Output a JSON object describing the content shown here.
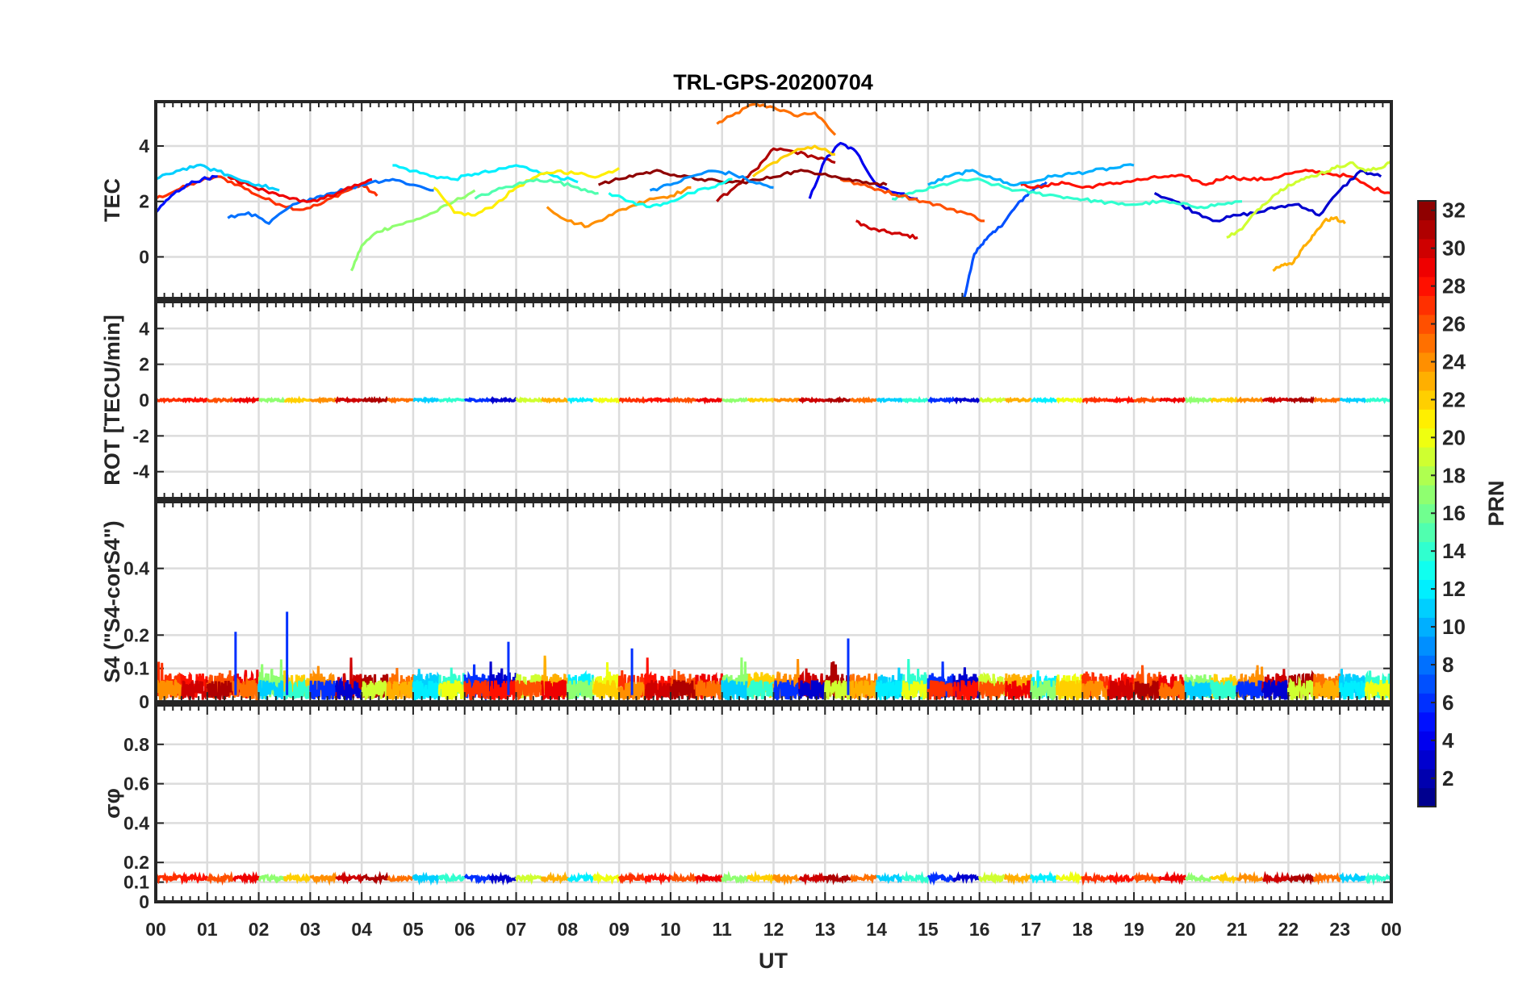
{
  "chart_data": {
    "type": "line",
    "title": "TRL-GPS-20200704",
    "xlabel": "UT",
    "x_tick_labels": [
      "00",
      "01",
      "02",
      "03",
      "04",
      "05",
      "06",
      "07",
      "08",
      "09",
      "10",
      "11",
      "12",
      "13",
      "14",
      "15",
      "16",
      "17",
      "18",
      "19",
      "20",
      "21",
      "22",
      "23",
      "00"
    ],
    "xlim": [
      0,
      24
    ],
    "grid": true,
    "colorbar": {
      "label": "PRN",
      "range": [
        1,
        32
      ],
      "ticks": [
        2,
        4,
        6,
        8,
        10,
        12,
        14,
        16,
        18,
        20,
        22,
        24,
        26,
        28,
        30,
        32
      ],
      "colormap": "jet",
      "placement": "right"
    },
    "panels": [
      {
        "id": "tec",
        "ylabel": "TEC",
        "ylim": [
          -1.5,
          5.6
        ],
        "yticks": [
          0,
          2,
          4
        ],
        "series": [
          {
            "prn": 25,
            "x": [
              10.9,
              11.2,
              11.6,
              12.0,
              12.4,
              12.8,
              13.2
            ],
            "y": [
              4.8,
              5.1,
              5.5,
              5.4,
              5.1,
              5.2,
              4.4
            ]
          },
          {
            "prn": 27,
            "x": [
              0.0,
              0.4,
              0.8,
              1.2,
              1.6,
              2.0,
              2.4,
              2.8,
              3.2,
              3.6,
              4.0,
              4.3
            ],
            "y": [
              2.1,
              2.4,
              2.7,
              2.9,
              2.6,
              2.2,
              1.9,
              1.7,
              1.9,
              2.3,
              2.6,
              2.2
            ]
          },
          {
            "prn": 30,
            "x": [
              13.6,
              13.9,
              14.2,
              14.5,
              14.8
            ],
            "y": [
              1.3,
              1.0,
              0.9,
              0.8,
              0.7
            ]
          },
          {
            "prn": 7,
            "x": [
              15.7,
              15.9,
              16.1,
              16.3,
              16.5,
              16.7,
              16.9,
              17.1,
              17.3
            ],
            "y": [
              -1.5,
              0.1,
              0.6,
              0.9,
              1.3,
              1.8,
              2.2,
              2.5,
              2.7
            ]
          },
          {
            "prn": 23,
            "x": [
              21.7,
              21.9,
              22.1,
              22.3,
              22.5,
              22.7,
              22.9,
              23.1
            ],
            "y": [
              -0.5,
              -0.3,
              -0.2,
              0.4,
              0.8,
              1.3,
              1.4,
              1.2
            ]
          },
          {
            "prn": 17,
            "x": [
              3.8,
              4.0,
              4.3,
              4.6,
              5.0,
              5.4,
              5.8,
              6.2
            ],
            "y": [
              -0.5,
              0.4,
              0.9,
              1.1,
              1.3,
              1.6,
              2.0,
              2.4
            ]
          },
          {
            "prn": 31,
            "x": [
              10.9,
              11.3,
              11.7,
              12.0,
              12.4,
              12.8,
              13.2
            ],
            "y": [
              2.0,
              2.6,
              3.2,
              3.9,
              3.8,
              3.6,
              3.4
            ]
          },
          {
            "prn": 4,
            "x": [
              12.7,
              13.0,
              13.3,
              13.6,
              14.0,
              14.4,
              14.8
            ],
            "y": [
              2.1,
              3.5,
              4.1,
              3.8,
              2.6,
              2.3,
              2.1
            ]
          },
          {
            "prn": 12,
            "x": [
              4.6,
              5.0,
              5.4,
              5.8,
              6.2,
              6.6,
              7.0,
              7.4,
              7.8,
              8.2
            ],
            "y": [
              3.3,
              3.1,
              2.9,
              2.8,
              3.0,
              3.1,
              3.3,
              3.1,
              2.9,
              2.7
            ]
          },
          {
            "prn": 21,
            "x": [
              5.4,
              5.8,
              6.2,
              6.6,
              7.0,
              7.4,
              7.8,
              8.2,
              8.6,
              9.0
            ],
            "y": [
              2.5,
              1.6,
              1.5,
              1.9,
              2.5,
              2.9,
              3.1,
              3.0,
              2.9,
              3.2
            ]
          },
          {
            "prn": 24,
            "x": [
              7.6,
              8.0,
              8.4,
              8.8,
              9.2,
              9.6,
              10.0,
              10.4
            ],
            "y": [
              1.8,
              1.3,
              1.1,
              1.5,
              1.8,
              2.1,
              2.2,
              2.5
            ]
          },
          {
            "prn": 28,
            "x": [
              16.8,
              17.2,
              17.6,
              18.0,
              18.4,
              18.8,
              19.2,
              19.6,
              20.0,
              20.4,
              20.8,
              21.2,
              21.6,
              22.0,
              22.4,
              22.8,
              23.2,
              23.6,
              24.0
            ],
            "y": [
              2.6,
              2.5,
              2.7,
              2.5,
              2.6,
              2.7,
              2.8,
              2.9,
              2.9,
              2.6,
              2.9,
              2.8,
              2.8,
              3.0,
              3.1,
              3.0,
              2.9,
              2.5,
              2.3
            ]
          },
          {
            "prn": 3,
            "x": [
              19.4,
              19.8,
              20.2,
              20.6,
              21.0,
              21.4,
              21.8,
              22.2,
              22.6,
              23.0,
              23.4,
              23.8
            ],
            "y": [
              2.3,
              2.0,
              1.6,
              1.3,
              1.5,
              1.6,
              1.8,
              1.9,
              1.5,
              2.4,
              3.1,
              2.9
            ]
          },
          {
            "prn": 10,
            "x": [
              15.0,
              15.4,
              15.8,
              16.2,
              16.6,
              17.0,
              17.4,
              17.8,
              18.2,
              18.6,
              19.0
            ],
            "y": [
              2.6,
              2.9,
              3.1,
              2.9,
              2.6,
              2.7,
              2.9,
              3.0,
              3.1,
              3.2,
              3.3
            ]
          },
          {
            "prn": 14,
            "x": [
              14.3,
              14.7,
              15.1,
              15.5,
              15.9,
              16.3,
              16.7,
              17.1,
              17.5,
              17.9,
              18.3,
              18.7,
              19.1,
              19.5,
              19.9,
              20.3,
              20.7,
              21.1
            ],
            "y": [
              2.1,
              2.3,
              2.5,
              2.7,
              2.8,
              2.6,
              2.4,
              2.3,
              2.2,
              2.1,
              2.0,
              1.9,
              1.9,
              2.0,
              1.9,
              1.8,
              1.9,
              2.0
            ]
          },
          {
            "prn": 8,
            "x": [
              1.4,
              1.8,
              2.2,
              2.6,
              3.0,
              3.4,
              3.8,
              4.2,
              4.6,
              5.0,
              5.4
            ],
            "y": [
              1.4,
              1.6,
              1.2,
              1.8,
              2.1,
              2.3,
              2.5,
              2.7,
              2.8,
              2.6,
              2.4
            ]
          },
          {
            "prn": 26,
            "x": [
              13.3,
              13.7,
              14.1,
              14.5,
              14.9,
              15.3,
              15.7,
              16.1
            ],
            "y": [
              2.8,
              2.6,
              2.4,
              2.2,
              2.0,
              1.8,
              1.6,
              1.3
            ]
          },
          {
            "prn": 19,
            "x": [
              20.8,
              21.1,
              21.4,
              21.7,
              22.0,
              22.3,
              22.6,
              22.9,
              23.2,
              23.5,
              23.8,
              24.0
            ],
            "y": [
              0.7,
              1.0,
              1.7,
              2.2,
              2.6,
              2.8,
              3.0,
              3.2,
              3.4,
              3.1,
              3.2,
              3.5
            ]
          },
          {
            "prn": 32,
            "x": [
              8.6,
              9.0,
              9.4,
              9.8,
              10.2,
              10.6,
              11.0,
              11.4,
              11.8,
              12.2,
              12.6,
              13.0,
              13.4,
              13.8,
              14.2
            ],
            "y": [
              2.6,
              2.8,
              3.0,
              3.1,
              2.9,
              2.8,
              2.7,
              2.7,
              2.8,
              3.0,
              3.1,
              3.0,
              2.8,
              2.7,
              2.6
            ]
          },
          {
            "prn": 29,
            "x": [
              1.4,
              1.8,
              2.2,
              2.6,
              3.0,
              3.4,
              3.8,
              4.2
            ],
            "y": [
              2.9,
              2.6,
              2.3,
              2.1,
              2.0,
              2.2,
              2.5,
              2.8
            ]
          },
          {
            "prn": 11,
            "x": [
              0.0,
              0.4,
              0.8,
              1.2,
              1.6,
              2.0,
              2.4
            ],
            "y": [
              2.8,
              3.1,
              3.3,
              3.1,
              2.8,
              2.6,
              2.4
            ]
          },
          {
            "prn": 22,
            "x": [
              11.6,
              12.0,
              12.4,
              12.8,
              13.2
            ],
            "y": [
              2.9,
              3.4,
              3.8,
              4.0,
              3.7
            ]
          },
          {
            "prn": 9,
            "x": [
              9.6,
              10.0,
              10.4,
              10.8,
              11.2,
              11.6,
              12.0
            ],
            "y": [
              2.4,
              2.6,
              2.9,
              3.1,
              3.0,
              2.7,
              2.5
            ]
          },
          {
            "prn": 5,
            "x": [
              0.0,
              0.3,
              0.6,
              0.9,
              1.2
            ],
            "y": [
              1.6,
              2.2,
              2.6,
              2.8,
              2.9
            ]
          },
          {
            "prn": 15,
            "x": [
              6.2,
              6.6,
              7.0,
              7.4,
              7.8,
              8.2,
              8.6
            ],
            "y": [
              2.1,
              2.4,
              2.6,
              2.8,
              2.7,
              2.5,
              2.3
            ]
          },
          {
            "prn": 13,
            "x": [
              8.8,
              9.2,
              9.6,
              10.0,
              10.4,
              10.8,
              11.2
            ],
            "y": [
              2.3,
              2.0,
              1.8,
              2.0,
              2.3,
              2.5,
              2.8
            ]
          }
        ]
      },
      {
        "id": "rot",
        "ylabel": "ROT [TECU/min]",
        "ylim": [
          -5.5,
          5.5
        ],
        "yticks": [
          -4,
          -2,
          0,
          2,
          4
        ],
        "series": [
          {
            "prn": 28,
            "x": [
              0,
              24
            ],
            "y": [
              0.0,
              0.0
            ]
          }
        ]
      },
      {
        "id": "s4",
        "ylabel": "S4 (\"S4-corS4\")",
        "ylim": [
          0,
          0.6
        ],
        "yticks": [
          0,
          0.1,
          0.2,
          0.4
        ],
        "series": [
          {
            "prn": 6,
            "x": [
              1.55,
              2.55,
              13.45,
              6.85,
              9.25
            ],
            "y": [
              0.21,
              0.27,
              0.19,
              0.18,
              0.16
            ]
          },
          {
            "prn": 28,
            "x": [
              0,
              24
            ],
            "y": [
              0.05,
              0.05
            ]
          }
        ]
      },
      {
        "id": "sigma",
        "ylabel": "σφ",
        "ylim": [
          0,
          1
        ],
        "yticks": [
          0,
          0.1,
          0.2,
          0.4,
          0.6,
          0.8
        ],
        "series": [
          {
            "prn": 28,
            "x": [
              0,
              24
            ],
            "y": [
              0.12,
              0.12
            ]
          }
        ]
      }
    ]
  }
}
